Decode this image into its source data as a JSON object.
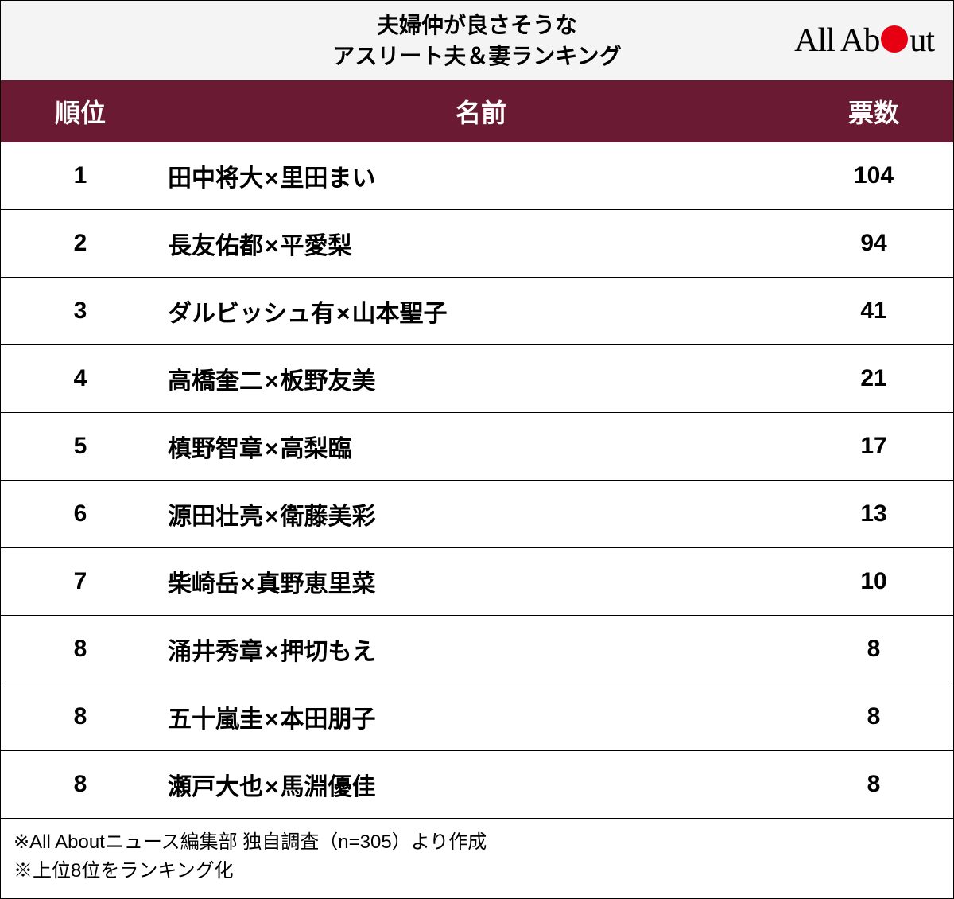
{
  "title_line1": "夫婦仲が良さそうな",
  "title_line2": "アスリート夫＆妻ランキング",
  "logo": {
    "text_before": "All Ab",
    "text_after": "ut",
    "dot_color": "#e60012"
  },
  "table": {
    "header_bg": "#6a1b33",
    "header_color": "#ffffff",
    "columns": {
      "rank": "順位",
      "name": "名前",
      "votes": "票数"
    },
    "rows": [
      {
        "rank": "1",
        "husband": "田中将大",
        "wife": "里田まい",
        "votes": "104"
      },
      {
        "rank": "2",
        "husband": "長友佑都",
        "wife": "平愛梨",
        "votes": "94"
      },
      {
        "rank": "3",
        "husband": "ダルビッシュ有",
        "wife": "山本聖子",
        "votes": "41"
      },
      {
        "rank": "4",
        "husband": "高橋奎二",
        "wife": "板野友美",
        "votes": "21"
      },
      {
        "rank": "5",
        "husband": "槙野智章",
        "wife": "高梨臨",
        "votes": "17"
      },
      {
        "rank": "6",
        "husband": "源田壮亮",
        "wife": "衛藤美彩",
        "votes": "13"
      },
      {
        "rank": "7",
        "husband": "柴崎岳",
        "wife": "真野恵里菜",
        "votes": "10"
      },
      {
        "rank": "8",
        "husband": "涌井秀章",
        "wife": "押切もえ",
        "votes": "8"
      },
      {
        "rank": "8",
        "husband": "五十嵐圭",
        "wife": "本田朋子",
        "votes": "8"
      },
      {
        "rank": "8",
        "husband": "瀬戸大也",
        "wife": "馬淵優佳",
        "votes": "8"
      }
    ],
    "separator": "×"
  },
  "footer": {
    "line1": "※All Aboutニュース編集部 独自調査（n=305）より作成",
    "line2": "※上位8位をランキング化"
  }
}
